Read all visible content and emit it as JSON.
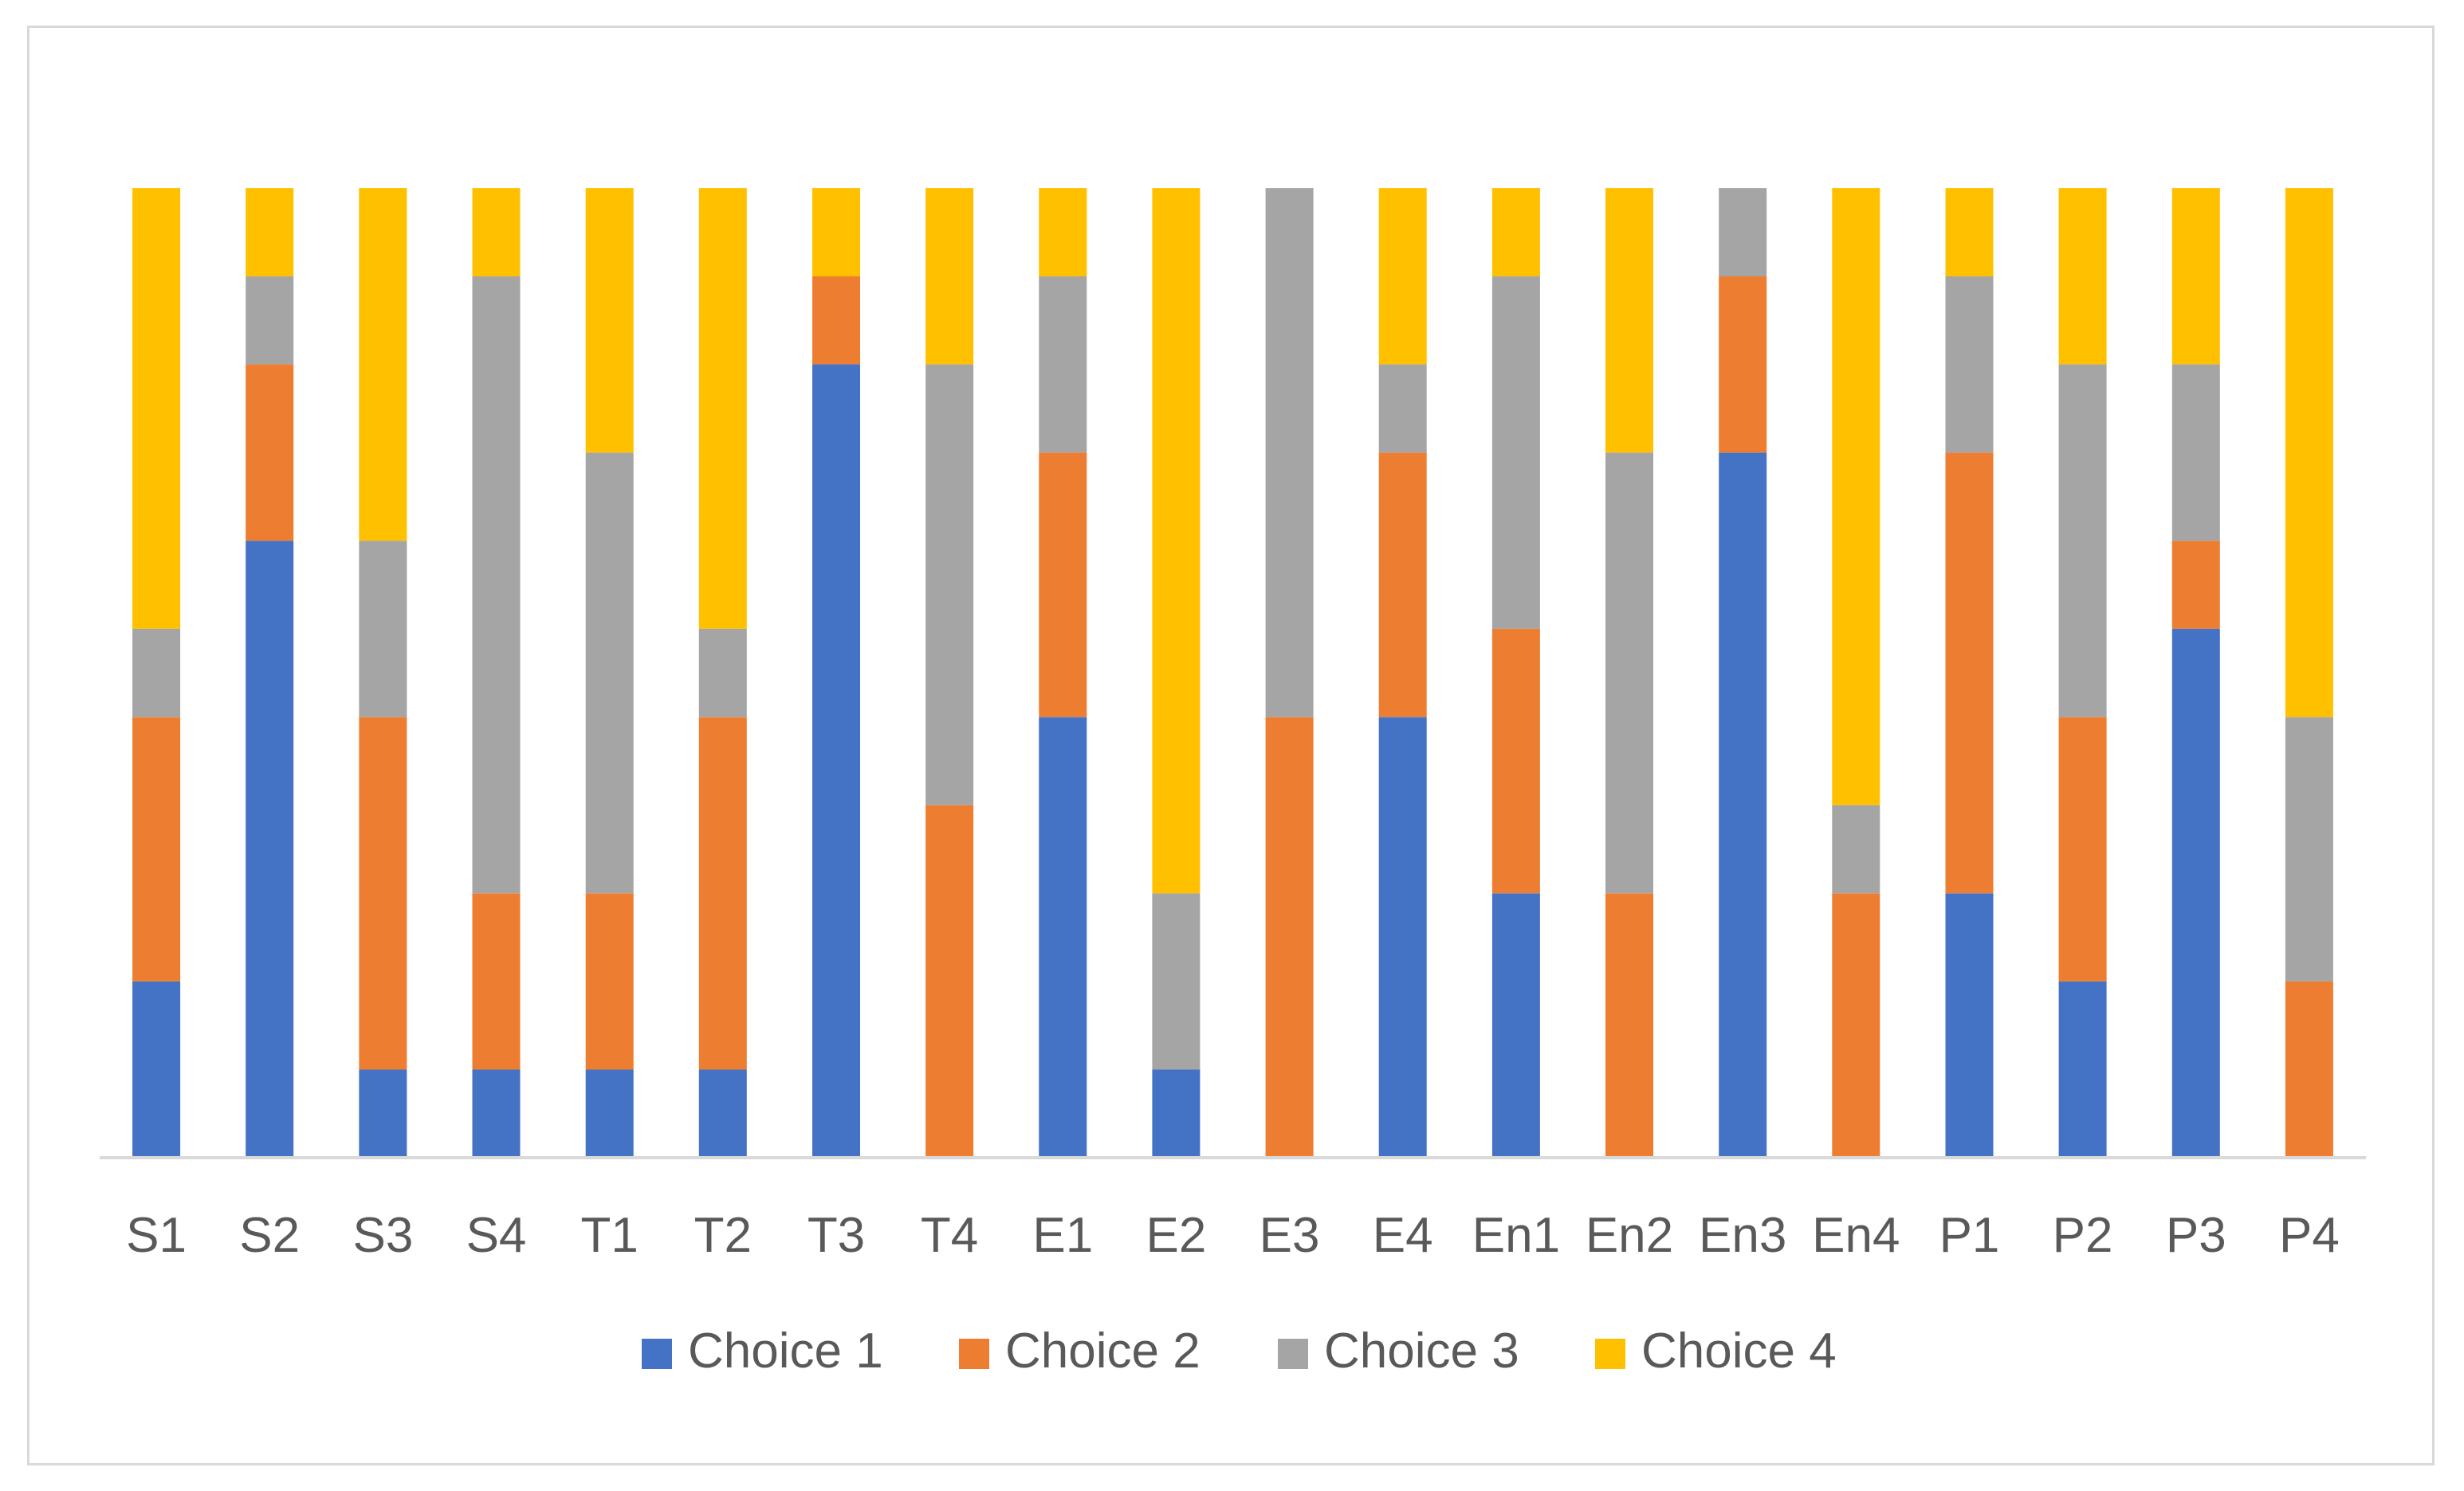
{
  "chart_data": {
    "type": "bar",
    "stacked": true,
    "normalized": true,
    "title": "",
    "xlabel": "",
    "ylabel": "",
    "ylim": [
      0,
      11
    ],
    "grid": false,
    "legend_position": "bottom",
    "categories": [
      "S1",
      "S2",
      "S3",
      "S4",
      "T1",
      "T2",
      "T3",
      "T4",
      "E1",
      "E2",
      "E3",
      "E4",
      "En1",
      "En2",
      "En3",
      "En4",
      "P1",
      "P2",
      "P3",
      "P4"
    ],
    "series": [
      {
        "name": "Choice 1",
        "color": "#4472C4",
        "values": [
          2,
          7,
          1,
          1,
          1,
          1,
          9,
          0,
          5,
          1,
          0,
          5,
          3,
          0,
          8,
          0,
          3,
          2,
          6,
          0
        ]
      },
      {
        "name": "Choice 2",
        "color": "#ED7D31",
        "values": [
          3,
          2,
          4,
          2,
          2,
          4,
          1,
          4,
          3,
          0,
          5,
          3,
          3,
          3,
          2,
          3,
          5,
          3,
          1,
          2
        ]
      },
      {
        "name": "Choice 3",
        "color": "#A5A5A5",
        "values": [
          1,
          1,
          2,
          7,
          5,
          1,
          0,
          5,
          2,
          2,
          6,
          1,
          4,
          5,
          1,
          1,
          2,
          4,
          2,
          3
        ]
      },
      {
        "name": "Choice 4",
        "color": "#FFC000",
        "values": [
          5,
          1,
          4,
          1,
          3,
          5,
          1,
          2,
          1,
          8,
          0,
          2,
          1,
          3,
          0,
          7,
          1,
          2,
          2,
          6
        ]
      }
    ]
  }
}
